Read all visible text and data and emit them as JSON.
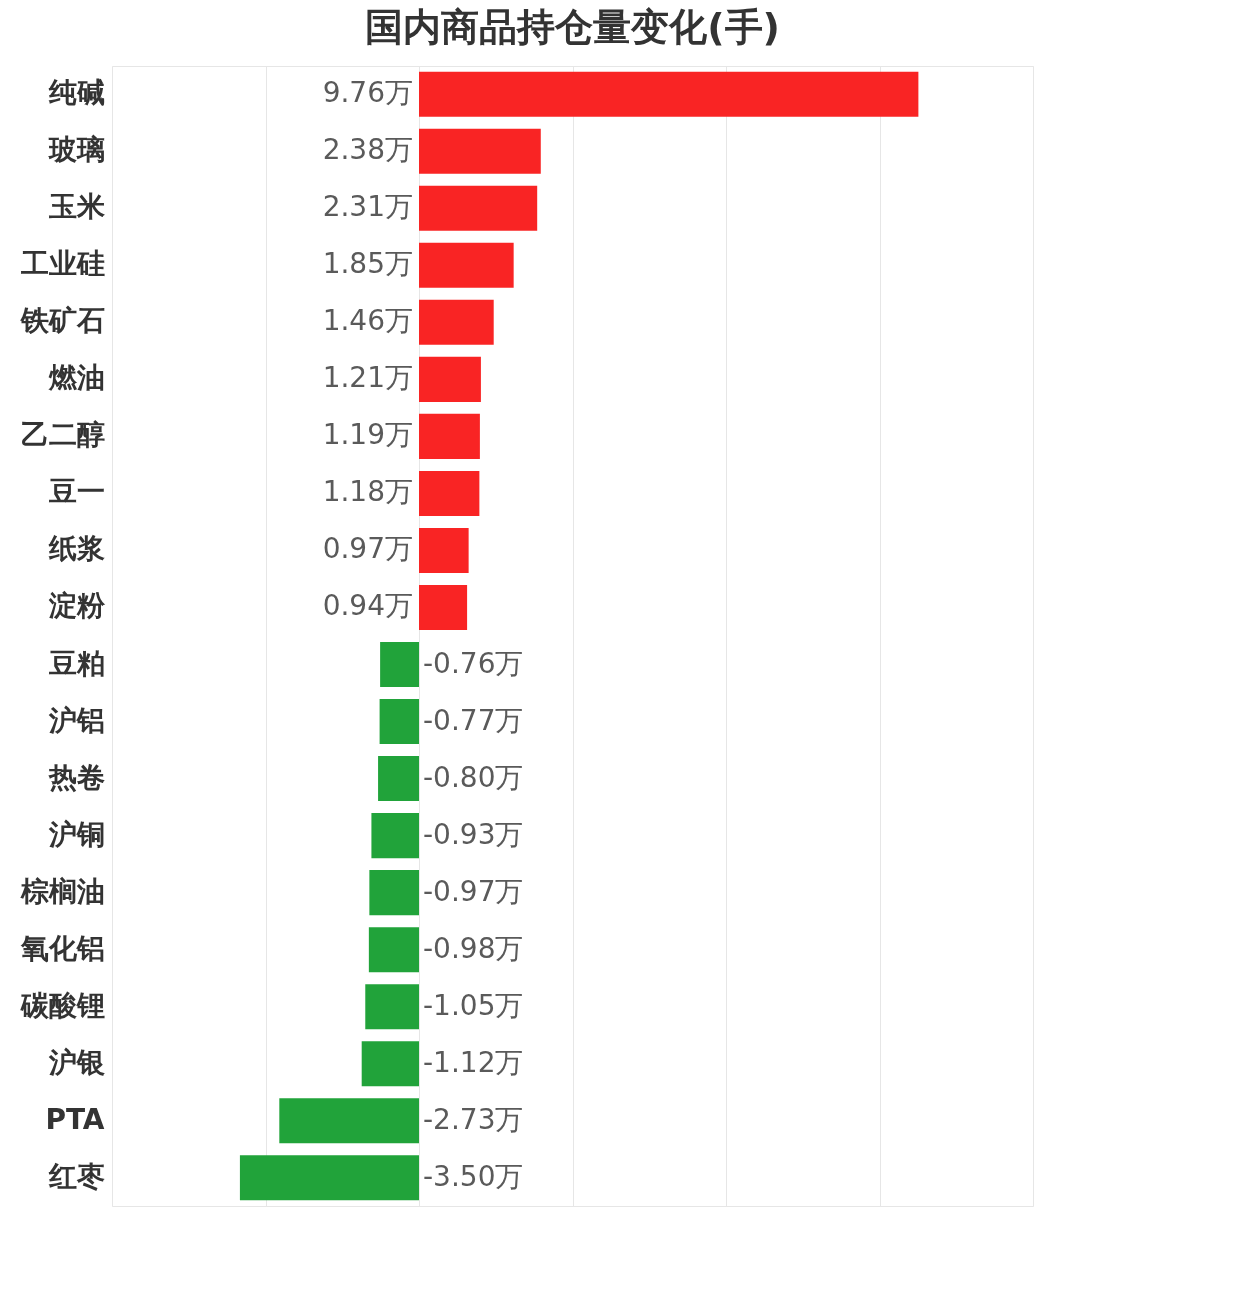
{
  "chart_data": {
    "type": "bar",
    "orientation": "horizontal",
    "title": "国内商品持仓量变化(手)",
    "categories": [
      "纯碱",
      "玻璃",
      "玉米",
      "工业硅",
      "铁矿石",
      "燃油",
      "乙二醇",
      "豆一",
      "纸浆",
      "淀粉",
      "豆粕",
      "沪铝",
      "热卷",
      "沪铜",
      "棕榈油",
      "氧化铝",
      "碳酸锂",
      "沪银",
      "PTA",
      "红枣"
    ],
    "values": [
      9.76,
      2.38,
      2.31,
      1.85,
      1.46,
      1.21,
      1.19,
      1.18,
      0.97,
      0.94,
      -0.76,
      -0.77,
      -0.8,
      -0.93,
      -0.97,
      -0.98,
      -1.05,
      -1.12,
      -2.73,
      -3.5
    ],
    "value_labels": [
      "9.76万",
      "2.38万",
      "2.31万",
      "1.85万",
      "1.46万",
      "1.21万",
      "1.19万",
      "1.18万",
      "0.97万",
      "0.94万",
      "-0.76万",
      "-0.77万",
      "-0.80万",
      "-0.93万",
      "-0.97万",
      "-0.98万",
      "-1.05万",
      "-1.12万",
      "-2.73万",
      "-3.50万"
    ],
    "colors": [
      "#f92424",
      "#f92424",
      "#f92424",
      "#f92424",
      "#f92424",
      "#f92424",
      "#f92424",
      "#f92424",
      "#f92424",
      "#f92424",
      "#21a33a",
      "#21a33a",
      "#21a33a",
      "#21a33a",
      "#21a33a",
      "#21a33a",
      "#21a33a",
      "#21a33a",
      "#21a33a",
      "#21a33a"
    ],
    "xlim": [
      -6,
      12
    ],
    "xticks": [
      {
        "value": -6,
        "label": null
      },
      {
        "value": -3,
        "label": null
      },
      {
        "value": 0,
        "label": null
      },
      {
        "value": 3,
        "label": null
      },
      {
        "value": 6,
        "label": null
      },
      {
        "value": 9,
        "label": null
      },
      {
        "value": 12,
        "label": null
      }
    ],
    "grid": "x",
    "tick_labels": "y"
  }
}
